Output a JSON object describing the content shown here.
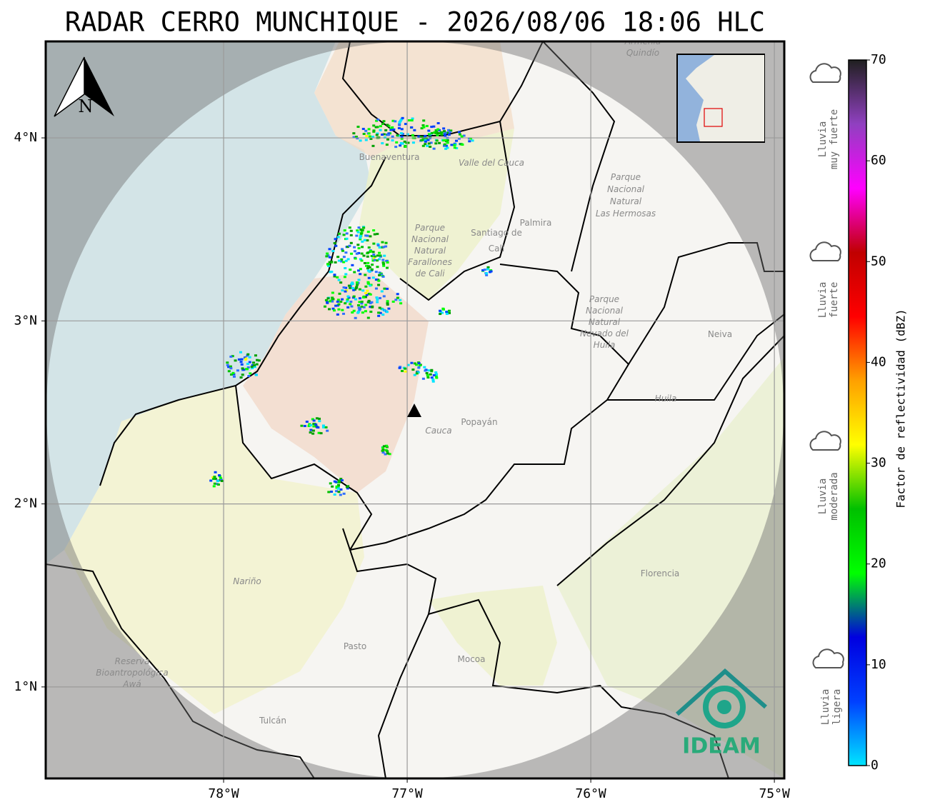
{
  "title": "RADAR CERRO MUNCHIQUE - 2026/08/06 18:06 HLC",
  "map": {
    "xlim": [
      -78.969,
      -74.946
    ],
    "ylim": [
      0.5,
      4.527
    ],
    "grid": true,
    "xticks": [
      {
        "value": -78,
        "label": "78°W"
      },
      {
        "value": -77,
        "label": "77°W"
      },
      {
        "value": -76,
        "label": "76°W"
      },
      {
        "value": -75,
        "label": "75°W"
      }
    ],
    "yticks": [
      {
        "value": 4,
        "label": "4°N"
      },
      {
        "value": 3,
        "label": "3°N"
      },
      {
        "value": 2,
        "label": "2°N"
      },
      {
        "value": 1,
        "label": "1°N"
      }
    ],
    "north": "N",
    "logo": "IDEAM",
    "places": [
      [
        "Buenaventura"
      ],
      [
        "Valle del Cauca"
      ],
      [
        "Santiago de",
        "Cali"
      ],
      [
        "Palmira"
      ],
      [
        "Parque",
        "Nacional",
        "Natural",
        "Las Hermosas"
      ],
      [
        "Parque",
        "Nacional",
        "Natural",
        "Farallones",
        "de Cali"
      ],
      [
        "Parque",
        "Nacional",
        "Natural",
        "Nevado del",
        "Huila"
      ],
      [
        "Neiva"
      ],
      [
        "Huila"
      ],
      [
        "Popayán"
      ],
      [
        "Cauca"
      ],
      [
        "Nariño"
      ],
      [
        "Pasto"
      ],
      [
        "Mocoa"
      ],
      [
        "Florencia"
      ],
      [
        "Reserva",
        "Bioantropológica",
        "Awá"
      ],
      [
        "Tulcán"
      ],
      [
        "Armenia",
        "Quindío"
      ]
    ]
  },
  "colorbar": {
    "label": "Factor de reflectividad (dBZ)",
    "lim": [
      0,
      70
    ],
    "ticks": [
      0,
      10,
      20,
      30,
      40,
      50,
      60,
      70
    ],
    "colors": [
      "#00e5ff",
      "#0040ff",
      "#0000e0",
      "#00ff00",
      "#00c000",
      "#ffff00",
      "#ffa000",
      "#ff0000",
      "#c00000",
      "#ff00ff",
      "#9040c0",
      "#202020"
    ]
  },
  "rain_levels": [
    [
      "Lluvia",
      "muy fuerte"
    ],
    [
      "Lluvia",
      "fuerte"
    ],
    [
      "Lluvia",
      "moderada"
    ],
    [
      "Lluvia",
      "ligera"
    ]
  ]
}
